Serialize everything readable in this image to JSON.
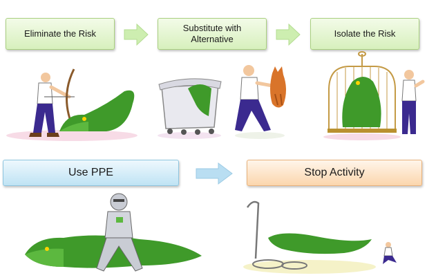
{
  "steps": {
    "eliminate": {
      "label": "Eliminate the Risk"
    },
    "substitute": {
      "line1": "Substitute with",
      "line2": "Alternative"
    },
    "isolate": {
      "label": "Isolate the Risk"
    },
    "ppe": {
      "label": "Use PPE"
    },
    "stop": {
      "label": "Stop Activity"
    }
  },
  "colors": {
    "green_box": "#d7f0bd",
    "blue_box": "#bfe3f4",
    "orange_box": "#fbd6ad",
    "arrow_green": "#cdeeb0",
    "arrow_blue": "#b9def2",
    "crocodile": "#3f9a2a"
  },
  "illustrations": [
    "archer-and-crocodile",
    "crocodile-in-bin",
    "man-holding-cat",
    "crocodile-in-cage-and-man",
    "knight-and-crocodile",
    "abandoned-equipment-and-crocodile"
  ]
}
